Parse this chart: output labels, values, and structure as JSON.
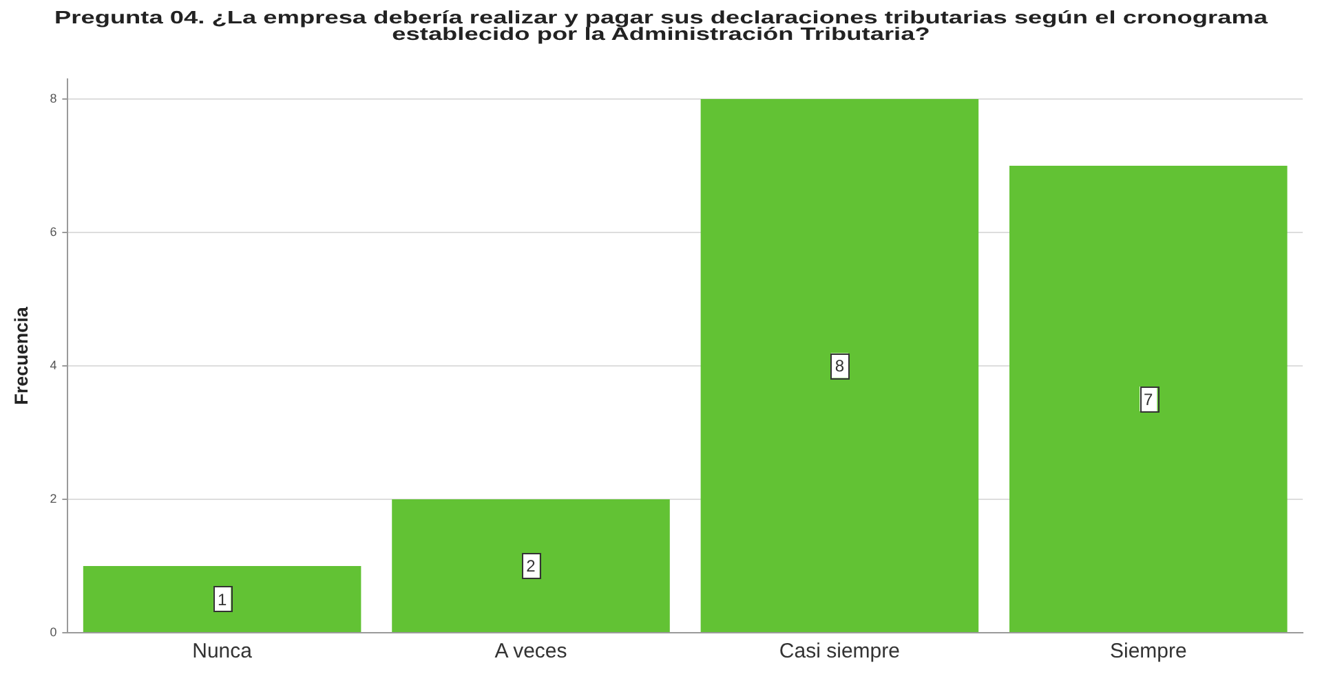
{
  "chart_data": {
    "type": "bar",
    "title": "Pregunta 04. ¿La empresa debería realizar y pagar sus declaraciones tributarias según el cronograma establecido por la Administración Tributaria?",
    "ylabel": "Frecuencia",
    "categories": [
      "Nunca",
      "A veces",
      "Casi siempre",
      "Siempre"
    ],
    "values": [
      1,
      2,
      8,
      7
    ],
    "color": "#62c234",
    "ylim": [
      0,
      8.3
    ],
    "yticks": [
      0,
      2,
      4,
      6,
      8
    ],
    "grid": "y",
    "data_labels": true
  }
}
